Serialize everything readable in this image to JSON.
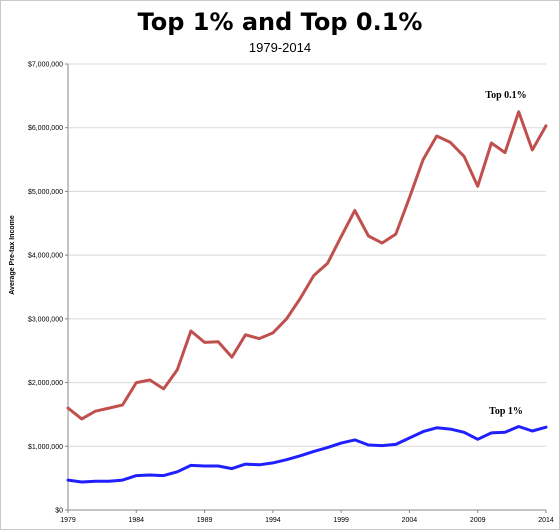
{
  "chart_data": {
    "type": "line",
    "title": "Top 1% and Top 0.1%",
    "subtitle": "1979-2014",
    "xlabel": "",
    "ylabel": "Average Pre-tax Income",
    "xlim": [
      1979,
      2014
    ],
    "ylim": [
      0,
      7000000
    ],
    "x_ticks": [
      1979,
      1984,
      1989,
      1994,
      1999,
      2004,
      2009,
      2014
    ],
    "y_ticks": [
      "$0",
      "$1,000,000",
      "$2,000,000",
      "$3,000,000",
      "$4,000,000",
      "$5,000,000",
      "$6,000,000",
      "$7,000,000"
    ],
    "y_tick_values": [
      0,
      1000000,
      2000000,
      3000000,
      4000000,
      5000000,
      6000000,
      7000000
    ],
    "grid": true,
    "x": [
      1979,
      1980,
      1981,
      1982,
      1983,
      1984,
      1985,
      1986,
      1987,
      1988,
      1989,
      1990,
      1991,
      1992,
      1993,
      1994,
      1995,
      1996,
      1997,
      1998,
      1999,
      2000,
      2001,
      2002,
      2003,
      2004,
      2005,
      2006,
      2007,
      2008,
      2009,
      2010,
      2011,
      2012,
      2013,
      2014
    ],
    "series": [
      {
        "name": "Top 0.1%",
        "color": "#c0504d",
        "values": [
          1600000,
          1430000,
          1550000,
          1600000,
          1650000,
          2000000,
          2040000,
          1900000,
          2200000,
          2810000,
          2630000,
          2640000,
          2400000,
          2750000,
          2690000,
          2780000,
          3000000,
          3320000,
          3680000,
          3870000,
          4290000,
          4700000,
          4300000,
          4190000,
          4330000,
          4900000,
          5500000,
          5870000,
          5770000,
          5550000,
          5080000,
          5760000,
          5610000,
          6250000,
          5650000,
          6030000
        ]
      },
      {
        "name": "Top 1%",
        "color": "#1f1fff",
        "values": [
          470000,
          440000,
          450000,
          450000,
          470000,
          540000,
          550000,
          540000,
          600000,
          700000,
          690000,
          690000,
          650000,
          720000,
          710000,
          740000,
          790000,
          850000,
          920000,
          980000,
          1050000,
          1100000,
          1020000,
          1010000,
          1030000,
          1130000,
          1230000,
          1290000,
          1270000,
          1220000,
          1110000,
          1210000,
          1220000,
          1310000,
          1240000,
          1300000
        ]
      }
    ]
  }
}
